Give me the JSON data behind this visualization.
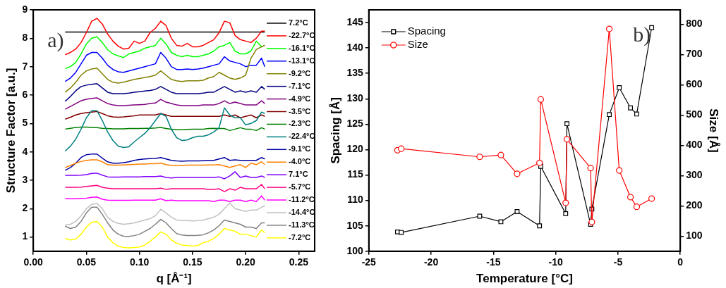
{
  "chart_data": [
    {
      "type": "line",
      "xlabel": "q [Å⁻¹]",
      "ylabel": "Structure Factor [a.u.]",
      "annotations": [
        "a)"
      ],
      "legend": "right",
      "xlim": [
        0,
        0.265
      ],
      "xticks": [
        {
          "value": 0,
          "label": "0.00"
        },
        {
          "value": 0.05,
          "label": "0.05"
        },
        {
          "value": 0.1,
          "label": "0.10"
        },
        {
          "value": 0.15,
          "label": "0.15"
        },
        {
          "value": 0.2,
          "label": "0.20"
        },
        {
          "value": 0.25,
          "label": "0.25"
        }
      ],
      "ylim": [
        0.5,
        9
      ],
      "yticks": [
        1,
        2,
        3,
        4,
        5,
        6,
        7,
        8,
        9
      ],
      "x": [
        0.03,
        0.035,
        0.04,
        0.045,
        0.05,
        0.055,
        0.06,
        0.065,
        0.07,
        0.075,
        0.08,
        0.085,
        0.09,
        0.095,
        0.1,
        0.105,
        0.11,
        0.115,
        0.12,
        0.125,
        0.13,
        0.135,
        0.14,
        0.145,
        0.15,
        0.155,
        0.16,
        0.165,
        0.17,
        0.175,
        0.18,
        0.185,
        0.19,
        0.195,
        0.2,
        0.205,
        0.21,
        0.215,
        0.218
      ],
      "series": [
        {
          "name": "7.2°C",
          "color": "#000000",
          "values": [
            8.22,
            8.22,
            8.22,
            8.22,
            8.22,
            8.22,
            8.22,
            8.22,
            8.22,
            8.22,
            8.22,
            8.22,
            8.22,
            8.22,
            8.22,
            8.22,
            8.22,
            8.22,
            8.22,
            8.22,
            8.22,
            8.22,
            8.22,
            8.22,
            8.22,
            8.22,
            8.22,
            8.22,
            8.22,
            8.22,
            8.22,
            8.22,
            8.22,
            8.22,
            8.22,
            8.22,
            8.22,
            8.22,
            8.22
          ]
        },
        {
          "name": "-22.7°C",
          "color": "#ff0000",
          "values": [
            7.42,
            7.5,
            7.62,
            7.85,
            8.2,
            8.6,
            8.7,
            8.5,
            8.15,
            7.9,
            7.72,
            7.62,
            7.65,
            7.9,
            7.82,
            7.9,
            8.2,
            8.35,
            8.6,
            8.45,
            8.0,
            7.75,
            7.72,
            7.82,
            7.7,
            7.7,
            7.75,
            7.85,
            7.95,
            8.2,
            8.6,
            8.55,
            8.1,
            7.95,
            7.9,
            7.85,
            8.0,
            8.25,
            8.25
          ]
        },
        {
          "name": "-16.1°C",
          "color": "#00ff00",
          "values": [
            6.93,
            7.0,
            7.15,
            7.45,
            7.8,
            8.0,
            8.05,
            7.85,
            7.6,
            7.45,
            7.38,
            7.32,
            7.45,
            7.5,
            7.55,
            7.65,
            7.7,
            7.75,
            8.0,
            7.8,
            7.5,
            7.4,
            7.35,
            7.4,
            7.35,
            7.35,
            7.4,
            7.45,
            7.55,
            7.7,
            7.75,
            7.85,
            7.55,
            7.45,
            7.45,
            7.55,
            7.9,
            7.7,
            7.75
          ]
        },
        {
          "name": "-13.1°C",
          "color": "#0000ff",
          "values": [
            6.48,
            6.6,
            6.8,
            7.1,
            7.4,
            7.5,
            7.5,
            7.3,
            7.05,
            6.9,
            6.82,
            6.8,
            6.85,
            6.9,
            6.95,
            7.0,
            7.05,
            7.1,
            7.5,
            7.3,
            7.0,
            6.9,
            6.9,
            6.92,
            6.9,
            6.92,
            6.95,
            7.0,
            7.05,
            7.1,
            7.35,
            7.2,
            7.15,
            7.1,
            7.0,
            7.05,
            7.05,
            7.3,
            7.0
          ]
        },
        {
          "name": "-9.2°C",
          "color": "#808000",
          "values": [
            6.1,
            6.25,
            6.45,
            6.7,
            6.85,
            6.92,
            6.95,
            6.75,
            6.55,
            6.45,
            6.42,
            6.45,
            6.5,
            6.55,
            6.58,
            6.62,
            6.65,
            6.7,
            6.85,
            6.7,
            6.55,
            6.5,
            6.48,
            6.5,
            6.5,
            6.5,
            6.52,
            6.6,
            6.65,
            6.8,
            6.7,
            6.6,
            6.55,
            6.6,
            6.7,
            7.3,
            7.6,
            7.7,
            7.75
          ]
        },
        {
          "name": "-7.1°C",
          "color": "#000080",
          "values": [
            5.78,
            5.95,
            6.15,
            6.3,
            6.35,
            6.38,
            6.4,
            6.25,
            6.1,
            6.05,
            6.05,
            6.05,
            6.07,
            6.1,
            6.12,
            6.14,
            6.16,
            6.2,
            6.3,
            6.2,
            6.1,
            6.05,
            6.05,
            6.05,
            6.05,
            6.05,
            6.07,
            6.1,
            6.1,
            6.2,
            6.3,
            6.2,
            6.1,
            6.15,
            6.1,
            6.15,
            6.1,
            6.3,
            6.2
          ]
        },
        {
          "name": "-4.9°C",
          "color": "#800080",
          "values": [
            5.5,
            5.6,
            5.7,
            5.8,
            5.85,
            5.88,
            5.9,
            5.8,
            5.7,
            5.65,
            5.63,
            5.63,
            5.64,
            5.65,
            5.66,
            5.67,
            5.7,
            5.72,
            5.85,
            5.75,
            5.7,
            5.65,
            5.63,
            5.63,
            5.63,
            5.63,
            5.65,
            5.65,
            5.65,
            5.7,
            5.8,
            5.7,
            5.75,
            5.7,
            5.65,
            5.65,
            5.65,
            5.8,
            5.7
          ]
        },
        {
          "name": "-3.5°C",
          "color": "#800000",
          "values": [
            5.15,
            5.22,
            5.3,
            5.35,
            5.38,
            5.4,
            5.42,
            5.35,
            5.27,
            5.23,
            5.22,
            5.23,
            5.25,
            5.27,
            5.3,
            5.3,
            5.3,
            5.3,
            5.35,
            5.3,
            5.25,
            5.25,
            5.25,
            5.25,
            5.25,
            5.25,
            5.25,
            5.25,
            5.25,
            5.25,
            5.3,
            5.25,
            5.3,
            5.2,
            5.25,
            5.3,
            5.2,
            5.3,
            5.25
          ]
        },
        {
          "name": "-2.3°C",
          "color": "#008000",
          "values": [
            4.8,
            4.83,
            4.86,
            4.87,
            4.87,
            4.86,
            4.85,
            4.83,
            4.82,
            4.81,
            4.81,
            4.81,
            4.82,
            4.82,
            4.82,
            4.83,
            4.83,
            4.84,
            4.86,
            4.82,
            4.8,
            4.78,
            4.78,
            4.79,
            4.8,
            4.8,
            4.8,
            4.82,
            4.83,
            4.82,
            4.82,
            4.75,
            4.8,
            4.85,
            4.8,
            4.8,
            4.75,
            4.85,
            4.8
          ]
        },
        {
          "name": "-22.4°C",
          "color": "#008080",
          "values": [
            4.03,
            4.2,
            4.45,
            4.8,
            5.2,
            5.45,
            5.45,
            5.1,
            4.7,
            4.4,
            4.2,
            4.15,
            4.18,
            4.35,
            4.5,
            4.65,
            4.85,
            5.1,
            5.35,
            5.25,
            4.8,
            4.5,
            4.4,
            4.42,
            4.5,
            4.55,
            4.55,
            4.6,
            4.7,
            4.85,
            5.55,
            5.3,
            5.2,
            5.2,
            4.95,
            5.0,
            5.1,
            5.4,
            5.35
          ]
        },
        {
          "name": "-9.1°C",
          "color": "#0000a0",
          "values": [
            3.35,
            3.45,
            3.6,
            3.8,
            3.9,
            3.92,
            3.92,
            3.78,
            3.65,
            3.6,
            3.6,
            3.62,
            3.65,
            3.7,
            3.73,
            3.75,
            3.76,
            3.77,
            3.8,
            3.75,
            3.7,
            3.68,
            3.67,
            3.68,
            3.68,
            3.68,
            3.69,
            3.7,
            3.7,
            3.75,
            3.8,
            3.7,
            3.72,
            3.7,
            3.7,
            3.7,
            3.7,
            3.8,
            3.75
          ]
        },
        {
          "name": "-4.0°C",
          "color": "#ff8000",
          "values": [
            3.45,
            3.52,
            3.6,
            3.66,
            3.7,
            3.72,
            3.72,
            3.65,
            3.55,
            3.53,
            3.53,
            3.54,
            3.55,
            3.56,
            3.57,
            3.57,
            3.58,
            3.58,
            3.6,
            3.55,
            3.52,
            3.52,
            3.52,
            3.53,
            3.53,
            3.53,
            3.53,
            3.54,
            3.54,
            3.55,
            3.5,
            3.45,
            3.5,
            3.55,
            3.45,
            3.6,
            3.55,
            3.65,
            3.55
          ]
        },
        {
          "name": "7.1°C",
          "color": "#8000ff",
          "values": [
            3.17,
            3.17,
            3.17,
            3.18,
            3.2,
            3.24,
            3.25,
            3.18,
            3.12,
            3.11,
            3.11,
            3.12,
            3.12,
            3.12,
            3.12,
            3.13,
            3.13,
            3.13,
            3.15,
            3.1,
            3.08,
            3.1,
            3.1,
            3.1,
            3.1,
            3.1,
            3.1,
            3.1,
            3.1,
            3.12,
            3.05,
            3.15,
            3.3,
            3.1,
            3.15,
            3.1,
            3.1,
            3.15,
            3.1
          ]
        },
        {
          "name": "-5.7°C",
          "color": "#ff0080",
          "values": [
            2.75,
            2.75,
            2.75,
            2.76,
            2.78,
            2.8,
            2.82,
            2.75,
            2.72,
            2.7,
            2.7,
            2.7,
            2.7,
            2.7,
            2.7,
            2.7,
            2.7,
            2.7,
            2.72,
            2.68,
            2.7,
            2.7,
            2.7,
            2.7,
            2.7,
            2.7,
            2.7,
            2.68,
            2.68,
            2.7,
            2.6,
            2.7,
            2.65,
            2.75,
            2.7,
            2.7,
            2.7,
            2.85,
            2.7
          ]
        },
        {
          "name": "-11.2°C",
          "color": "#ff00ff",
          "values": [
            2.35,
            2.35,
            2.35,
            2.36,
            2.37,
            2.4,
            2.41,
            2.33,
            2.3,
            2.29,
            2.29,
            2.29,
            2.29,
            2.3,
            2.3,
            2.3,
            2.3,
            2.3,
            2.35,
            2.28,
            2.3,
            2.28,
            2.28,
            2.28,
            2.28,
            2.28,
            2.28,
            2.28,
            2.25,
            2.3,
            2.3,
            2.25,
            2.3,
            2.3,
            2.25,
            2.3,
            2.25,
            2.45,
            2.3
          ]
        },
        {
          "name": "-14.4°C",
          "color": "#c0c0c0",
          "values": [
            1.42,
            1.45,
            1.55,
            1.75,
            2.0,
            2.15,
            2.18,
            2.0,
            1.7,
            1.55,
            1.48,
            1.45,
            1.47,
            1.5,
            1.55,
            1.6,
            1.65,
            1.75,
            1.98,
            1.85,
            1.7,
            1.6,
            1.58,
            1.58,
            1.57,
            1.58,
            1.6,
            1.65,
            1.7,
            1.8,
            2.0,
            2.2,
            2.0,
            1.95,
            1.9,
            1.95,
            1.95,
            2.05,
            2.1
          ]
        },
        {
          "name": "-11.3°C",
          "color": "#808080",
          "values": [
            1.38,
            1.3,
            1.35,
            1.55,
            1.85,
            2.05,
            2.05,
            1.8,
            1.5,
            1.25,
            1.1,
            1.03,
            1.02,
            1.05,
            1.1,
            1.2,
            1.3,
            1.45,
            1.62,
            1.5,
            1.3,
            1.12,
            1.07,
            1.05,
            1.05,
            1.06,
            1.08,
            1.15,
            1.25,
            1.4,
            1.6,
            1.55,
            1.5,
            1.45,
            1.35,
            1.35,
            1.3,
            1.5,
            1.5
          ]
        },
        {
          "name": "-7.2°C",
          "color": "#ffff00",
          "values": [
            0.95,
            0.9,
            0.93,
            1.1,
            1.35,
            1.52,
            1.55,
            1.35,
            1.0,
            0.8,
            0.68,
            0.63,
            0.62,
            0.63,
            0.65,
            0.72,
            0.85,
            1.0,
            1.18,
            1.1,
            0.9,
            0.78,
            0.72,
            0.7,
            0.68,
            0.7,
            0.8,
            0.85,
            0.95,
            1.1,
            1.3,
            1.25,
            1.2,
            1.1,
            1.1,
            1.05,
            1.0,
            1.25,
            1.15
          ]
        }
      ]
    },
    {
      "type": "line",
      "xlabel": "Temperature [°C]",
      "ylabel": "Spacing [Å]",
      "y2label": "Size [Å]",
      "annotations": [
        "b)"
      ],
      "legend": "top left",
      "xlim": [
        -25,
        0
      ],
      "xticks": [
        -25,
        -20,
        -15,
        -10,
        -5,
        0
      ],
      "ylim": [
        100,
        147.5
      ],
      "yticks": [
        100,
        105,
        110,
        115,
        120,
        125,
        130,
        135,
        140,
        145
      ],
      "y2lim": [
        50,
        848
      ],
      "y2ticks": [
        100,
        200,
        300,
        400,
        500,
        600,
        700,
        800
      ],
      "x": [
        -22.7,
        -22.4,
        -16.1,
        -14.4,
        -13.1,
        -11.3,
        -11.2,
        -9.2,
        -9.1,
        -7.2,
        -7.1,
        -5.7,
        -4.9,
        -4.0,
        -3.5,
        -2.3
      ],
      "series": [
        {
          "name": "Spacing",
          "color": "#000000",
          "marker": "square",
          "values": [
            103.8,
            103.7,
            106.9,
            105.8,
            107.8,
            105.0,
            116.7,
            107.4,
            125.1,
            105.3,
            108.3,
            126.9,
            132.2,
            128.2,
            127.0,
            144.0
          ]
        },
        {
          "name": "Size",
          "color": "#ff0000",
          "marker": "circle",
          "axis": "y2",
          "values": [
            384,
            389,
            362,
            368,
            306,
            342,
            552,
            210,
            420,
            325,
            147,
            785,
            317,
            229,
            197,
            224
          ]
        }
      ]
    }
  ]
}
